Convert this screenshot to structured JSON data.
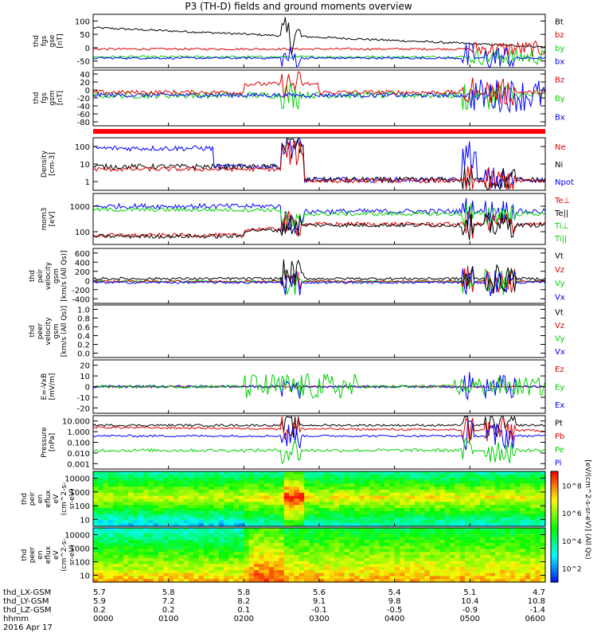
{
  "title": "P3 (TH-D) fields and ground moments overview",
  "date_label": "2016 Apr 17",
  "colors": {
    "black": "#000000",
    "red": "#e00000",
    "green": "#00d000",
    "blue": "#0000ff"
  },
  "chart_data": {
    "type": "line",
    "x_label_rows": [
      {
        "name": "thd_LX-GSM",
        "ticks": [
          "5.7",
          "5.8",
          "5.8",
          "5.6",
          "5.4",
          "5.1",
          "4.7"
        ]
      },
      {
        "name": "thd_LY-GSM",
        "ticks": [
          "5.9",
          "7.2",
          "8.2",
          "9.1",
          "9.8",
          "10.4",
          "10.8"
        ]
      },
      {
        "name": "thd_LZ-GSM",
        "ticks": [
          "0.2",
          "0.2",
          "0.1",
          "-0.1",
          "-0.5",
          "-0.9",
          "-1.4"
        ]
      },
      {
        "name": "hhmm",
        "ticks": [
          "0000",
          "0100",
          "0200",
          "0300",
          "0400",
          "0500",
          "0600"
        ]
      }
    ],
    "x_range": [
      0,
      6
    ],
    "panels": [
      {
        "id": "fgs-gse",
        "ylabel": [
          "thd",
          "fgs",
          "gse",
          "[nT]"
        ],
        "yticks": [
          "100",
          "50",
          "0",
          "-50"
        ],
        "legend": [
          {
            "text": "Bt",
            "color": "black"
          },
          {
            "text": "bz",
            "color": "red"
          },
          {
            "text": "by",
            "color": "green"
          },
          {
            "text": "bx",
            "color": "blue"
          }
        ]
      },
      {
        "id": "fgs-gsm",
        "ylabel": [
          "thd",
          "fgs",
          "gsm",
          "[nT]"
        ],
        "yticks": [
          "40",
          "20",
          "0",
          "-20",
          "-40",
          "-60",
          "-80"
        ],
        "legend": [
          {
            "text": "Bz",
            "color": "red"
          },
          {
            "text": "By",
            "color": "green"
          },
          {
            "text": "Bx",
            "color": "blue"
          }
        ]
      },
      {
        "id": "density",
        "ylabel": [
          "Density",
          "[cm-3]"
        ],
        "yticks": [
          "100",
          "10",
          "1"
        ],
        "legend": [
          {
            "text": "Ne",
            "color": "red"
          },
          {
            "text": "Ni",
            "color": "black"
          },
          {
            "text": "Npot",
            "color": "blue"
          }
        ]
      },
      {
        "id": "temperature",
        "ylabel": [
          "mom3",
          "[eV]"
        ],
        "yticks": [
          "1000",
          "100"
        ],
        "legend": [
          {
            "text": "Te⊥",
            "color": "red"
          },
          {
            "text": "Te||",
            "color": "black"
          },
          {
            "text": "Ti⊥",
            "color": "green"
          },
          {
            "text": "Ti||",
            "color": "green"
          }
        ]
      },
      {
        "id": "peir-velocity",
        "ylabel": [
          "thd",
          "peir",
          "velocity",
          "gsm",
          "[km/s (All Qs)]"
        ],
        "yticks": [
          "600",
          "400",
          "200",
          "0",
          "-200",
          "-400"
        ],
        "legend": [
          {
            "text": "Vt",
            "color": "black"
          },
          {
            "text": "Vz",
            "color": "red"
          },
          {
            "text": "Vy",
            "color": "green"
          },
          {
            "text": "Vx",
            "color": "blue"
          }
        ]
      },
      {
        "id": "peer-velocity",
        "ylabel": [
          "thd",
          "peer",
          "velocity",
          "gsm",
          "[km/s (All Qs)]"
        ],
        "yticks": [
          "1.0",
          "0.8",
          "0.6",
          "0.4",
          "0.2",
          "0.0"
        ],
        "legend": [
          {
            "text": "Vt",
            "color": "black"
          },
          {
            "text": "Vz",
            "color": "red"
          },
          {
            "text": "Vy",
            "color": "green"
          },
          {
            "text": "Vx",
            "color": "blue"
          }
        ]
      },
      {
        "id": "efield",
        "ylabel": [
          "E=-VxB",
          "[mV/m]"
        ],
        "yticks": [
          "20",
          "10",
          "0",
          "-10",
          "-20"
        ],
        "legend": [
          {
            "text": "Ez",
            "color": "red"
          },
          {
            "text": "Ey",
            "color": "green"
          },
          {
            "text": "Ex",
            "color": "blue"
          }
        ]
      },
      {
        "id": "pressure",
        "ylabel": [
          "Pressure",
          "[nPa]"
        ],
        "yticks": [
          "10.000",
          "1.000",
          "0.100",
          "0.010",
          "0.001"
        ],
        "legend": [
          {
            "text": "Pt",
            "color": "black"
          },
          {
            "text": "Pb",
            "color": "red"
          },
          {
            "text": "Pe",
            "color": "green"
          },
          {
            "text": "Pi",
            "color": "blue"
          }
        ]
      },
      {
        "id": "peir-spec",
        "ylabel": [
          "thd",
          "peir",
          "en",
          "eflux",
          "eV",
          "(cm^2-s-",
          "sr-eV)"
        ],
        "yticks": [
          "10000",
          "1000",
          "100",
          "10"
        ]
      },
      {
        "id": "peer-spec",
        "ylabel": [
          "thd",
          "peer",
          "en",
          "eflux",
          "eV",
          "(cm^2-s-",
          "sr-eV)"
        ],
        "yticks": [
          "10000",
          "1000",
          "100",
          "10"
        ]
      }
    ],
    "colorbar_ticks": [
      "10^8",
      "10^6",
      "10^4",
      "10^2"
    ],
    "colorbar_label": "[eV/(cm^2-s-sr-eV)] (All Qs)"
  }
}
